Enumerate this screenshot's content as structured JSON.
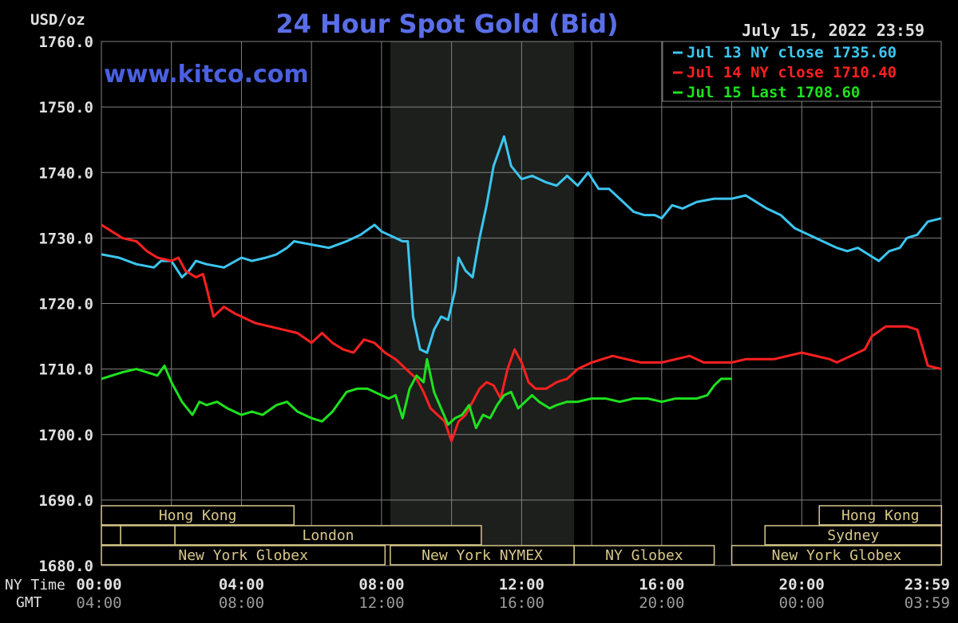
{
  "colors": {
    "background": "#000000",
    "grid": "#808080",
    "axis_text": "#e0e0e0",
    "title": "#5a6ee8",
    "watermark": "#4b60e0",
    "session_box": "#d8c88a",
    "nymex_shade": "#1c1f1c",
    "series_jul13": "#3cc6f0",
    "series_jul14": "#ff2020",
    "series_jul15": "#1ee21e"
  },
  "header": {
    "unit_label": "USD/oz",
    "title": "24 Hour Spot Gold (Bid)",
    "timestamp": "July 15, 2022 23:59",
    "watermark": "www.kitco.com"
  },
  "time_rows": {
    "ny_label": "NY Time",
    "gmt_label": "GMT"
  },
  "sessions": [
    {
      "label": "Hong Kong",
      "start": 0.0,
      "end": 5.5,
      "row": 0
    },
    {
      "label": "",
      "start": 0.0,
      "end": 0.55,
      "row": 1
    },
    {
      "label": "",
      "start": 0.55,
      "end": 2.1,
      "row": 1
    },
    {
      "label": "London",
      "start": 2.1,
      "end": 10.85,
      "row": 1
    },
    {
      "label": "New York Globex",
      "start": 0.0,
      "end": 8.1,
      "row": 2
    },
    {
      "label": "New York NYMEX",
      "start": 8.25,
      "end": 13.5,
      "row": 2
    },
    {
      "label": "NY Globex",
      "start": 13.5,
      "end": 17.5,
      "row": 2
    },
    {
      "label": "Hong Kong",
      "start": 20.5,
      "end": 23.99,
      "row": 0
    },
    {
      "label": "Sydney",
      "start": 18.95,
      "end": 23.99,
      "row": 1
    },
    {
      "label": "New York Globex",
      "start": 18.0,
      "end": 23.99,
      "row": 2
    }
  ],
  "chart_data": {
    "type": "line",
    "title": "24 Hour Spot Gold (Bid)",
    "ylabel": "USD/oz",
    "xlim": [
      0,
      23.983
    ],
    "ylim": [
      1680,
      1760
    ],
    "grid": true,
    "legend_position": "top-right",
    "shaded_range": [
      8.25,
      13.5
    ],
    "x_ticks": [
      0,
      4,
      8,
      12,
      16,
      20,
      23.983
    ],
    "x_tick_labels_ny": [
      "00:00",
      "04:00",
      "08:00",
      "12:00",
      "16:00",
      "20:00",
      "23:59"
    ],
    "x_tick_labels_gmt": [
      "04:00",
      "08:00",
      "12:00",
      "16:00",
      "20:00",
      "00:00",
      "03:59"
    ],
    "y_ticks": [
      1680,
      1690,
      1700,
      1710,
      1720,
      1730,
      1740,
      1750,
      1760
    ],
    "y_tick_labels": [
      "1680.0",
      "1690.0",
      "1700.0",
      "1710.0",
      "1720.0",
      "1730.0",
      "1740.0",
      "1750.0",
      "1760.0"
    ],
    "series": [
      {
        "name": "Jul 13 NY close 1735.60",
        "color_key": "series_jul13",
        "x": [
          0,
          0.5,
          1.0,
          1.5,
          1.7,
          2.0,
          2.3,
          2.5,
          2.7,
          3.0,
          3.5,
          4.0,
          4.3,
          4.7,
          5.0,
          5.3,
          5.5,
          6.0,
          6.5,
          7.0,
          7.4,
          7.8,
          8.0,
          8.4,
          8.6,
          8.75,
          8.9,
          9.1,
          9.3,
          9.5,
          9.7,
          9.9,
          10.1,
          10.2,
          10.4,
          10.6,
          10.8,
          11.0,
          11.2,
          11.4,
          11.5,
          11.7,
          12.0,
          12.3,
          12.7,
          13.0,
          13.3,
          13.6,
          13.9,
          14.2,
          14.5,
          14.8,
          15.0,
          15.2,
          15.5,
          15.8,
          16.0,
          16.3,
          16.6,
          17.0,
          17.5,
          18.0,
          18.4,
          18.7,
          19.0,
          19.4,
          19.8,
          20.2,
          20.6,
          21.0,
          21.3,
          21.6,
          21.9,
          22.2,
          22.5,
          22.8,
          23.0,
          23.3,
          23.6,
          23.983
        ],
        "values": [
          1727.5,
          1727.0,
          1726.0,
          1725.5,
          1726.5,
          1726.5,
          1724.0,
          1725.0,
          1726.5,
          1726.0,
          1725.5,
          1727.0,
          1726.5,
          1727.0,
          1727.5,
          1728.5,
          1729.5,
          1729.0,
          1728.5,
          1729.5,
          1730.5,
          1732.0,
          1731.0,
          1730.0,
          1729.5,
          1729.5,
          1718.0,
          1713.0,
          1712.5,
          1716.0,
          1718.0,
          1717.5,
          1722.0,
          1727.0,
          1725.0,
          1724.0,
          1730.0,
          1735.0,
          1741.0,
          1744.0,
          1745.5,
          1741.0,
          1739.0,
          1739.5,
          1738.5,
          1738.0,
          1739.5,
          1738.0,
          1740.0,
          1737.5,
          1737.5,
          1736.0,
          1735.0,
          1734.0,
          1733.5,
          1733.5,
          1733.0,
          1735.0,
          1734.5,
          1735.5,
          1736.0,
          1736.0,
          1736.5,
          1735.5,
          1734.5,
          1733.5,
          1731.5,
          1730.5,
          1729.5,
          1728.5,
          1728.0,
          1728.5,
          1727.5,
          1726.5,
          1728.0,
          1728.5,
          1730.0,
          1730.5,
          1732.5,
          1733.0
        ]
      },
      {
        "name": "Jul 14 NY close 1710.40",
        "color_key": "series_jul14",
        "x": [
          0,
          0.3,
          0.6,
          1.0,
          1.3,
          1.6,
          2.0,
          2.2,
          2.4,
          2.7,
          2.9,
          3.0,
          3.2,
          3.5,
          3.8,
          4.0,
          4.4,
          4.8,
          5.2,
          5.6,
          6.0,
          6.3,
          6.6,
          6.9,
          7.2,
          7.5,
          7.8,
          8.1,
          8.4,
          8.7,
          9.0,
          9.2,
          9.4,
          9.6,
          9.8,
          10.0,
          10.2,
          10.4,
          10.6,
          10.8,
          11.0,
          11.2,
          11.4,
          11.6,
          11.8,
          12.0,
          12.2,
          12.4,
          12.7,
          13.0,
          13.3,
          13.6,
          14.0,
          14.3,
          14.6,
          15.0,
          15.4,
          15.8,
          16.0,
          16.4,
          16.8,
          17.2,
          17.6,
          18.0,
          18.4,
          18.8,
          19.2,
          19.6,
          20.0,
          20.4,
          20.8,
          21.0,
          21.4,
          21.8,
          22.0,
          22.4,
          22.8,
          23.0,
          23.3,
          23.6,
          23.983
        ],
        "values": [
          1732.0,
          1731.0,
          1730.0,
          1729.5,
          1728.0,
          1727.0,
          1726.5,
          1727.0,
          1725.0,
          1724.0,
          1724.5,
          1722.5,
          1718.0,
          1719.5,
          1718.5,
          1718.0,
          1717.0,
          1716.5,
          1716.0,
          1715.5,
          1714.0,
          1715.5,
          1714.0,
          1713.0,
          1712.5,
          1714.5,
          1714.0,
          1712.5,
          1711.5,
          1710.0,
          1708.5,
          1706.5,
          1704.0,
          1703.0,
          1702.0,
          1699.0,
          1702.0,
          1703.0,
          1705.0,
          1707.0,
          1708.0,
          1707.5,
          1705.5,
          1710.0,
          1713.0,
          1711.0,
          1708.0,
          1707.0,
          1707.0,
          1708.0,
          1708.5,
          1710.0,
          1711.0,
          1711.5,
          1712.0,
          1711.5,
          1711.0,
          1711.0,
          1711.0,
          1711.5,
          1712.0,
          1711.0,
          1711.0,
          1711.0,
          1711.5,
          1711.5,
          1711.5,
          1712.0,
          1712.5,
          1712.0,
          1711.5,
          1711.0,
          1712.0,
          1713.0,
          1715.0,
          1716.5,
          1716.5,
          1716.5,
          1716.0,
          1710.5,
          1710.0
        ]
      },
      {
        "name": "Jul 15 Last 1708.60",
        "color_key": "series_jul15",
        "x": [
          0,
          0.3,
          0.6,
          1.0,
          1.3,
          1.6,
          1.8,
          2.0,
          2.3,
          2.6,
          2.8,
          3.0,
          3.3,
          3.6,
          4.0,
          4.3,
          4.6,
          5.0,
          5.3,
          5.6,
          6.0,
          6.3,
          6.6,
          7.0,
          7.3,
          7.6,
          8.0,
          8.2,
          8.4,
          8.6,
          8.8,
          9.0,
          9.2,
          9.3,
          9.5,
          9.7,
          9.9,
          10.1,
          10.3,
          10.5,
          10.7,
          10.9,
          11.1,
          11.3,
          11.5,
          11.7,
          11.9,
          12.1,
          12.3,
          12.5,
          12.8,
          13.0,
          13.3,
          13.6,
          14.0,
          14.4,
          14.8,
          15.2,
          15.6,
          16.0,
          16.4,
          16.8,
          17.0,
          17.3,
          17.5,
          17.7,
          18.0
        ],
        "values": [
          1708.5,
          1709.0,
          1709.5,
          1710.0,
          1709.5,
          1709.0,
          1710.5,
          1708.0,
          1705.0,
          1703.0,
          1705.0,
          1704.5,
          1705.0,
          1704.0,
          1703.0,
          1703.5,
          1703.0,
          1704.5,
          1705.0,
          1703.5,
          1702.5,
          1702.0,
          1703.5,
          1706.5,
          1707.0,
          1707.0,
          1706.0,
          1705.5,
          1706.0,
          1702.5,
          1707.0,
          1709.0,
          1708.0,
          1711.5,
          1706.5,
          1704.0,
          1701.5,
          1702.5,
          1703.0,
          1704.5,
          1701.0,
          1703.0,
          1702.5,
          1704.5,
          1706.0,
          1706.5,
          1704.0,
          1705.0,
          1706.0,
          1705.0,
          1704.0,
          1704.5,
          1705.0,
          1705.0,
          1705.5,
          1705.5,
          1705.0,
          1705.5,
          1705.5,
          1705.0,
          1705.5,
          1705.5,
          1705.5,
          1706.0,
          1707.5,
          1708.5,
          1708.5
        ]
      }
    ]
  }
}
